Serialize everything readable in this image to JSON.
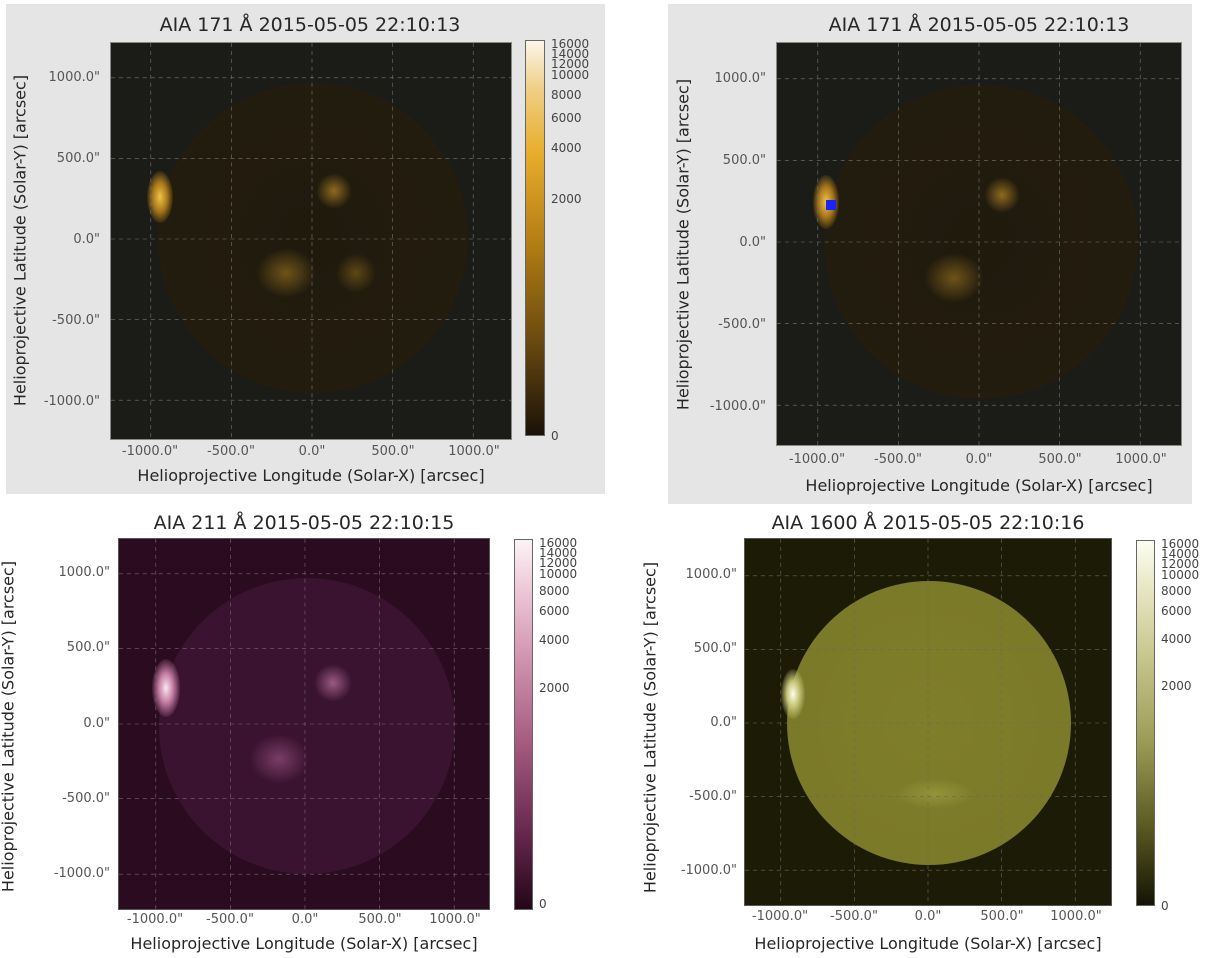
{
  "panels": [
    {
      "title": "AIA 171 Å 2015-05-05 22:10:13",
      "xlabel": "Helioprojective Longitude (Solar-X) [arcsec]",
      "ylabel": "Helioprojective Latitude (Solar-Y) [arcsec]",
      "xticks": [
        "-1000.0\"",
        "-500.0\"",
        "0.0\"",
        "500.0\"",
        "1000.0\""
      ],
      "yticks": [
        "1000.0\"",
        "500.0\"",
        "0.0\"",
        "-500.0\"",
        "-1000.0\""
      ],
      "colorbar_ticks": [
        "16000",
        "14000",
        "12000",
        "10000",
        "8000",
        "6000",
        "4000",
        "2000",
        "0"
      ],
      "colormap_top": "#fbf6ea",
      "colormap_mid": "#e0a21f",
      "colormap_bottom": "#1a1208"
    },
    {
      "title": "AIA 171 Å 2015-05-05 22:10:13",
      "xlabel": "Helioprojective Longitude (Solar-X) [arcsec]",
      "ylabel": "Helioprojective Latitude (Solar-Y) [arcsec]",
      "xticks": [
        "-1000.0\"",
        "-500.0\"",
        "0.0\"",
        "500.0\"",
        "1000.0\""
      ],
      "yticks": [
        "1000.0\"",
        "500.0\"",
        "0.0\"",
        "-500.0\"",
        "-1000.0\""
      ],
      "marker_color": "#1a22ff"
    },
    {
      "title": "AIA 211 Å 2015-05-05 22:10:15",
      "xlabel": "Helioprojective Longitude (Solar-X) [arcsec]",
      "ylabel": "Helioprojective Latitude (Solar-Y) [arcsec]",
      "xticks": [
        "-1000.0\"",
        "-500.0\"",
        "0.0\"",
        "500.0\"",
        "1000.0\""
      ],
      "yticks": [
        "1000.0\"",
        "500.0\"",
        "0.0\"",
        "-500.0\"",
        "-1000.0\""
      ],
      "colorbar_ticks": [
        "16000",
        "14000",
        "12000",
        "10000",
        "8000",
        "6000",
        "4000",
        "2000",
        "0"
      ],
      "colormap_top": "#fbf3f6",
      "colormap_mid": "#b56f8c",
      "colormap_bottom": "#240617"
    },
    {
      "title": "AIA 1600 Å 2015-05-05 22:10:16",
      "xlabel": "Helioprojective Longitude (Solar-X) [arcsec]",
      "ylabel": "Helioprojective Latitude (Solar-Y) [arcsec]",
      "xticks": [
        "-1000.0\"",
        "-500.0\"",
        "0.0\"",
        "500.0\"",
        "1000.0\""
      ],
      "yticks": [
        "1000.0\"",
        "500.0\"",
        "0.0\"",
        "-500.0\"",
        "-1000.0\""
      ],
      "colorbar_ticks": [
        "16000",
        "14000",
        "12000",
        "10000",
        "8000",
        "6000",
        "4000",
        "2000",
        "0"
      ],
      "colormap_top": "#fdfdf2",
      "colormap_mid": "#a8a760",
      "colormap_bottom": "#141405"
    }
  ]
}
